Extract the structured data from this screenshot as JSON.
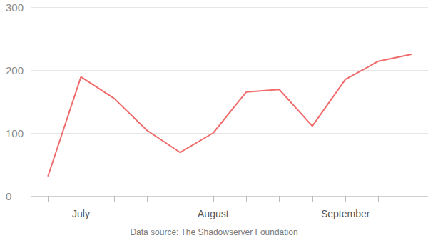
{
  "chart_data": {
    "type": "line",
    "caption": "Data source: The Shadowserver Foundation",
    "categories": [
      null,
      "July",
      null,
      null,
      null,
      "August",
      null,
      null,
      null,
      "September",
      null,
      null
    ],
    "values": [
      31,
      189,
      155,
      104,
      69,
      100,
      165,
      169,
      111,
      185,
      214,
      225
    ],
    "color": "#f06b6b",
    "ylim": [
      0,
      300
    ],
    "yticks": [
      0,
      100,
      200,
      300
    ],
    "grid": true
  }
}
